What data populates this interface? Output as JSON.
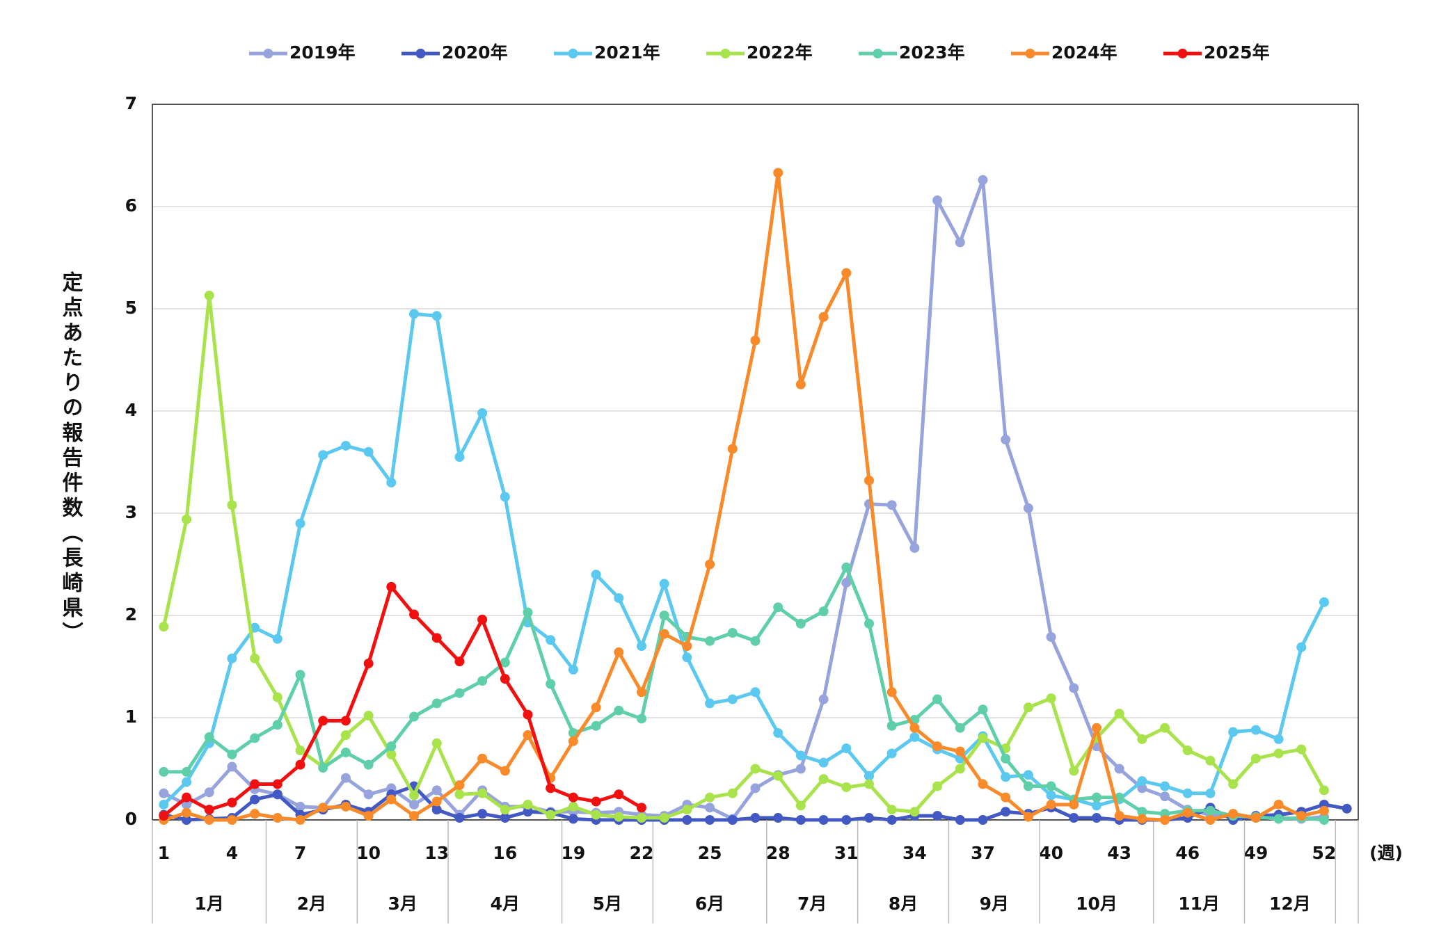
{
  "chart_data": {
    "type": "line",
    "ylabel": "定点あたりの報告件数（長崎県）",
    "xlabel": "(週)",
    "x": [
      1,
      2,
      3,
      4,
      5,
      6,
      7,
      8,
      9,
      10,
      11,
      12,
      13,
      14,
      15,
      16,
      17,
      18,
      19,
      20,
      21,
      22,
      23,
      24,
      25,
      26,
      27,
      28,
      29,
      30,
      31,
      32,
      33,
      34,
      35,
      36,
      37,
      38,
      39,
      40,
      41,
      42,
      43,
      44,
      45,
      46,
      47,
      48,
      49,
      50,
      51,
      52,
      53
    ],
    "xlim": [
      0.5,
      53.5
    ],
    "xticks": [
      1,
      4,
      7,
      10,
      13,
      16,
      19,
      22,
      25,
      28,
      31,
      34,
      37,
      40,
      43,
      46,
      49,
      52
    ],
    "months": [
      "1月",
      "2月",
      "3月",
      "4月",
      "5月",
      "6月",
      "7月",
      "8月",
      "9月",
      "10月",
      "11月",
      "12月"
    ],
    "ylim": [
      0,
      7
    ],
    "yticks": [
      0,
      1,
      2,
      3,
      4,
      5,
      6,
      7
    ],
    "grid": true,
    "legend": "top",
    "series": [
      {
        "name": "2019年",
        "color": "#97a3dc",
        "values": [
          0.26,
          0.15,
          0.27,
          0.52,
          0.3,
          0.25,
          0.13,
          0.12,
          0.41,
          0.25,
          0.31,
          0.15,
          0.29,
          0.05,
          0.29,
          0.13,
          0.13,
          0.08,
          0.08,
          0.07,
          0.08,
          0.05,
          0.04,
          0.15,
          0.12,
          0.01,
          0.31,
          0.44,
          0.5,
          1.18,
          2.32,
          3.09,
          3.08,
          2.66,
          6.06,
          5.65,
          6.26,
          3.72,
          3.05,
          1.79,
          1.29,
          0.72,
          0.5,
          0.31,
          0.23,
          0.1,
          0.05,
          0.03,
          0.02,
          0.02,
          0.01,
          0.03,
          null
        ]
      },
      {
        "name": "2020年",
        "color": "#4258c2",
        "values": [
          0.05,
          0,
          0.01,
          0.02,
          0.2,
          0.25,
          0.05,
          0.1,
          0.15,
          0.08,
          0.25,
          0.33,
          0.1,
          0.02,
          0.06,
          0.02,
          0.08,
          0.07,
          0.01,
          0,
          0,
          0,
          0,
          0,
          0,
          0,
          0.02,
          0.02,
          0,
          0,
          0,
          0.02,
          0,
          0.04,
          0.04,
          0,
          0,
          0.08,
          0.06,
          0.12,
          0.02,
          0.02,
          0,
          0,
          0,
          0.02,
          0.12,
          0,
          0.04,
          0.05,
          0.08,
          0.15,
          0.11
        ]
      },
      {
        "name": "2021年",
        "color": "#5bc8ef",
        "values": [
          0.15,
          0.37,
          0.75,
          1.58,
          1.88,
          1.77,
          2.9,
          3.57,
          3.66,
          3.6,
          3.3,
          4.95,
          4.93,
          3.55,
          3.98,
          3.16,
          1.93,
          1.76,
          1.47,
          2.4,
          2.17,
          1.7,
          2.31,
          1.59,
          1.14,
          1.18,
          1.25,
          0.85,
          0.63,
          0.56,
          0.7,
          0.43,
          0.65,
          0.81,
          0.69,
          0.6,
          0.82,
          0.42,
          0.44,
          0.24,
          0.2,
          0.14,
          0.2,
          0.38,
          0.33,
          0.26,
          0.26,
          0.86,
          0.88,
          0.79,
          1.69,
          2.13,
          null
        ]
      },
      {
        "name": "2022年",
        "color": "#a9e34b",
        "values": [
          1.89,
          2.94,
          5.13,
          3.08,
          1.58,
          1.2,
          0.68,
          0.52,
          0.83,
          1.02,
          0.64,
          0.24,
          0.75,
          0.25,
          0.26,
          0.1,
          0.15,
          0.05,
          0.13,
          0.05,
          0.03,
          0.02,
          0.02,
          0.1,
          0.22,
          0.26,
          0.5,
          0.43,
          0.14,
          0.4,
          0.32,
          0.35,
          0.1,
          0.08,
          0.33,
          0.5,
          0.8,
          0.7,
          1.1,
          1.19,
          0.48,
          0.8,
          1.04,
          0.79,
          0.9,
          0.68,
          0.58,
          0.35,
          0.6,
          0.65,
          0.69,
          0.29,
          null
        ]
      },
      {
        "name": "2023年",
        "color": "#5fcfa8",
        "values": [
          0.47,
          0.47,
          0.81,
          0.64,
          0.8,
          0.93,
          1.42,
          0.51,
          0.66,
          0.54,
          0.72,
          1.01,
          1.14,
          1.24,
          1.36,
          1.54,
          2.03,
          1.33,
          0.85,
          0.92,
          1.07,
          0.99,
          2.0,
          1.79,
          1.75,
          1.83,
          1.75,
          2.08,
          1.92,
          2.04,
          2.47,
          1.92,
          0.92,
          0.98,
          1.18,
          0.9,
          1.08,
          0.6,
          0.33,
          0.33,
          0.2,
          0.22,
          0.22,
          0.08,
          0.06,
          0.09,
          0.09,
          0.04,
          0.03,
          0.01,
          0.02,
          0,
          null
        ]
      },
      {
        "name": "2024年",
        "color": "#f98a2a",
        "values": [
          0,
          0.07,
          0,
          0,
          0.06,
          0.02,
          0,
          0.12,
          0.13,
          0.04,
          0.2,
          0.04,
          0.18,
          0.34,
          0.6,
          0.48,
          0.83,
          0.41,
          0.77,
          1.1,
          1.64,
          1.25,
          1.82,
          1.7,
          2.5,
          3.63,
          4.69,
          6.33,
          4.26,
          4.92,
          5.35,
          3.32,
          1.25,
          0.9,
          0.72,
          0.67,
          0.35,
          0.22,
          0.03,
          0.15,
          0.15,
          0.9,
          0.04,
          0.01,
          0,
          0.07,
          0,
          0.06,
          0.02,
          0.15,
          0.04,
          0.09,
          null
        ]
      },
      {
        "name": "2025年",
        "color": "#f01010",
        "values": [
          0.04,
          0.22,
          0.1,
          0.17,
          0.35,
          0.35,
          0.54,
          0.97,
          0.97,
          1.53,
          2.28,
          2.01,
          1.78,
          1.55,
          1.96,
          1.38,
          1.03,
          0.31,
          0.22,
          0.18,
          0.25,
          0.12,
          null,
          null,
          null,
          null,
          null,
          null,
          null,
          null,
          null,
          null,
          null,
          null,
          null,
          null,
          null,
          null,
          null,
          null,
          null,
          null,
          null,
          null,
          null,
          null,
          null,
          null,
          null,
          null,
          null,
          null,
          null
        ]
      }
    ]
  }
}
